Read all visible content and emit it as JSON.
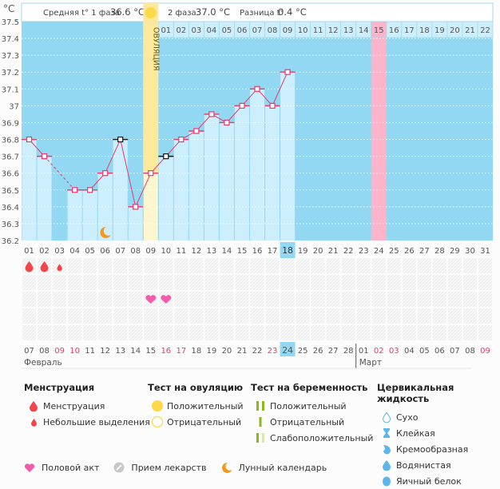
{
  "header": {
    "unit": "°C",
    "phase1_label": "Средняя t° 1 фаза",
    "phase1_value": "36.6 °C",
    "phase2_label": "2 фаза",
    "phase2_value": "37.0 °C",
    "diff_label": "Разница t°",
    "diff_value": "0.4 °C"
  },
  "ovulation_label": "ОВУЛЯЦИЯ",
  "chart_data": {
    "type": "line",
    "title": "",
    "xlabel": "",
    "ylabel": "°C",
    "ylim": [
      36.2,
      37.5
    ],
    "yticks": [
      "36.2",
      "36.3",
      "36.4",
      "36.5",
      "36.6",
      "36.7",
      "36.8",
      "36.9",
      "37",
      "37.1",
      "37.2",
      "37.3",
      "37.4",
      "37.5"
    ],
    "cycle_days": [
      "01",
      "02",
      "03",
      "04",
      "05",
      "06",
      "07",
      "08",
      "09",
      "10",
      "11",
      "12",
      "13",
      "14",
      "15",
      "16",
      "17",
      "18",
      "19",
      "20",
      "21",
      "22",
      "23",
      "24",
      "25",
      "26",
      "27",
      "28",
      "29",
      "30",
      "31"
    ],
    "current_cycle_day": "18",
    "phase2_days": [
      "01",
      "02",
      "03",
      "04",
      "05",
      "06",
      "07",
      "08",
      "09",
      "10",
      "11",
      "12",
      "13",
      "14",
      "15",
      "16",
      "17",
      "18",
      "19",
      "20",
      "21",
      "22"
    ],
    "phase2_highlight_day": "15",
    "ovulation_day_index": 9,
    "predicted_period_day_index": 24,
    "series": [
      {
        "name": "Базальная температура",
        "values": [
          36.8,
          36.7,
          null,
          36.5,
          36.5,
          36.6,
          36.8,
          36.4,
          36.6,
          36.7,
          36.8,
          36.85,
          36.95,
          36.9,
          37.0,
          37.1,
          37.0,
          37.2,
          null,
          null,
          null,
          null,
          null,
          null,
          null,
          null,
          null,
          null,
          null,
          null,
          null
        ],
        "black_markers_days": [
          7,
          10
        ]
      }
    ],
    "coverline": null,
    "calendar_dates": [
      "07",
      "08",
      "09",
      "10",
      "11",
      "12",
      "13",
      "14",
      "15",
      "16",
      "17",
      "18",
      "19",
      "20",
      "21",
      "22",
      "23",
      "24",
      "25",
      "26",
      "27",
      "28",
      "01",
      "02",
      "03",
      "04",
      "05",
      "06",
      "07",
      "08",
      "09"
    ],
    "weekend_dates_indices": [
      3,
      4,
      10,
      11,
      17,
      24,
      25,
      31
    ],
    "today_index": 18,
    "months": [
      {
        "name": "Февраль",
        "start_index": 1
      },
      {
        "name": "Март",
        "start_index": 23
      }
    ],
    "moon_day_index": 6,
    "markers": {
      "menstruation": [
        1,
        2
      ],
      "spotting": [
        3
      ],
      "intercourse": [
        9,
        10
      ]
    }
  },
  "legend": {
    "menstruation": {
      "title": "Менструация",
      "items": [
        "Менструация",
        "Небольшие выделения"
      ]
    },
    "ovulation_test": {
      "title": "Тест на овуляцию",
      "items": [
        "Положительный",
        "Отрицательный"
      ]
    },
    "pregnancy_test": {
      "title": "Тест на беременность",
      "items": [
        "Положительный",
        "Отрицательный",
        "Слабоположительный"
      ]
    },
    "cervical_fluid": {
      "title": "Цервикальная жидкость",
      "items": [
        "Сухо",
        "Клейкая",
        "Кремообразная",
        "Водянистая",
        "Яичный белок"
      ]
    },
    "bottom": [
      "Половой акт",
      "Прием лекарств",
      "Лунный календарь"
    ]
  },
  "colors": {
    "grid_bg": "#93d8f2",
    "bar_fill": "#cdeefc",
    "line": "#e8396a",
    "ovulation": "#fde99c",
    "period": "#fbb4c8",
    "today": "#93d8f2",
    "weekend_text": "#e8396a",
    "drop": "#f0464a",
    "heart": "#f25cab",
    "moon": "#f39a1c",
    "sun": "#fdd849",
    "preg_green": "#8db81b",
    "fluid": "#5bb7ea"
  }
}
